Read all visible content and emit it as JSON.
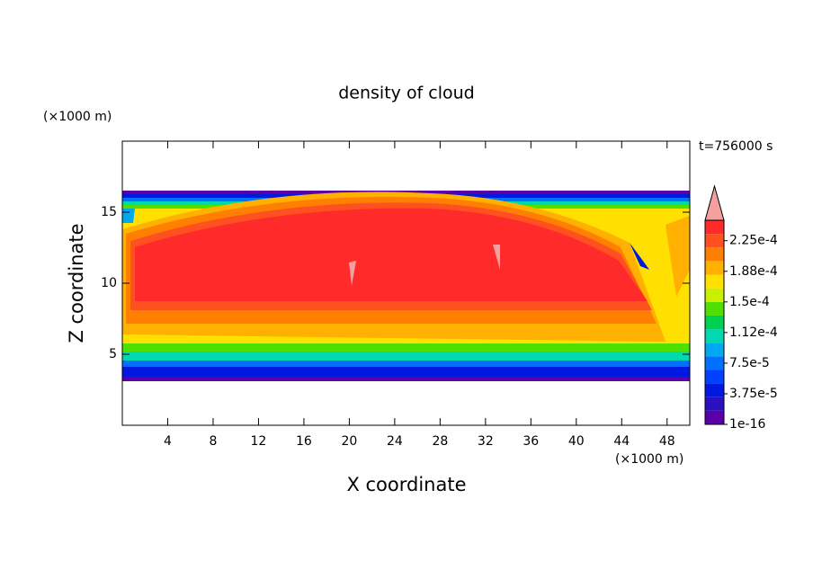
{
  "chart_data": {
    "type": "contour",
    "title": "density of cloud",
    "time_label": "t=756000 s",
    "xlabel": "X coordinate",
    "ylabel": "Z coordinate",
    "x_unit": "(×1000 m)",
    "y_unit": "(×1000 m)",
    "xlim": [
      0,
      50
    ],
    "xticks": [
      4,
      8,
      12,
      16,
      20,
      24,
      28,
      32,
      36,
      40,
      44,
      48
    ],
    "ylim": [
      0,
      20
    ],
    "yticks": [
      5,
      10,
      15
    ],
    "colorbar": {
      "clim": [
        0,
        0.00025
      ],
      "ticks": [
        {
          "value": 1e-16,
          "label": "1e-16"
        },
        {
          "value": 3.75e-05,
          "label": "3.75e-5"
        },
        {
          "value": 7.5e-05,
          "label": "7.5e-5"
        },
        {
          "value": 0.0001125,
          "label": "1.12e-4"
        },
        {
          "value": 0.00015,
          "label": "1.5e-4"
        },
        {
          "value": 0.0001875,
          "label": "1.88e-4"
        },
        {
          "value": 0.000225,
          "label": "2.25e-4"
        }
      ],
      "colors": [
        "#5a00a8",
        "#2a10c0",
        "#0018e0",
        "#0040ff",
        "#0070ff",
        "#00a8f0",
        "#00d8b0",
        "#00d050",
        "#50e000",
        "#c8f000",
        "#ffe000",
        "#ffb000",
        "#ff8000",
        "#ff5020",
        "#ff2a2a"
      ],
      "over_color": "#f4a0a0"
    }
  }
}
